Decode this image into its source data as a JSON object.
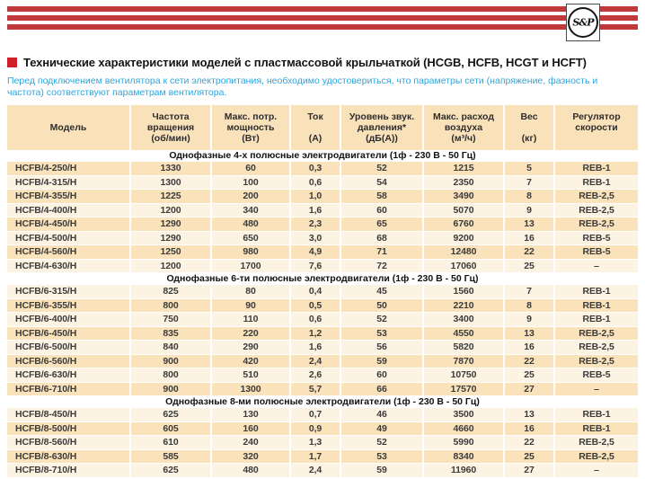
{
  "logo": {
    "text": "S&P"
  },
  "header": {
    "title": "Технические характеристики моделей с пластмассовой крыльчаткой (HCGB, HCFB, HCGT и HCFT)",
    "note": "Перед подключением вентилятора к сети электропитания, необходимо удостовериться, что параметры сети (напряжение, фазность и частота) соответствуют параметрам вентилятора."
  },
  "colors": {
    "stripe_red": "#c2393c",
    "bullet_red": "#ce2127",
    "note_blue": "#2fa5db",
    "header_peach": "#f9e1ba",
    "row_peach": "#fae2ba",
    "row_light": "#fdf3e2"
  },
  "table": {
    "columns": [
      {
        "name": "model",
        "lines": [
          "Модель"
        ]
      },
      {
        "name": "rpm",
        "lines": [
          "Частота",
          "вращения",
          "(об/мин)"
        ]
      },
      {
        "name": "max-power",
        "lines": [
          "Макс. потр.",
          "мощность",
          "(Вт)"
        ]
      },
      {
        "name": "current",
        "lines": [
          "Ток",
          "",
          "(А)"
        ]
      },
      {
        "name": "sound-level",
        "lines": [
          "Уровень звук.",
          "давления*",
          "(дБ(А))"
        ]
      },
      {
        "name": "max-airflow",
        "lines": [
          "Макс. расход",
          "воздуха",
          "(м³/ч)"
        ]
      },
      {
        "name": "weight",
        "lines": [
          "Вес",
          "",
          "(кг)"
        ]
      },
      {
        "name": "speed-controller",
        "lines": [
          "Регулятор",
          "скорости",
          ""
        ]
      }
    ],
    "sections": [
      {
        "title": "Однофазные 4-х полюсные электродвигатели (1ф - 230 В - 50 Гц)",
        "start_shade": "peach",
        "rows": [
          [
            "HCFB/4-250/H",
            "1330",
            "60",
            "0,3",
            "52",
            "1215",
            "5",
            "REB-1"
          ],
          [
            "HCFB/4-315/H",
            "1300",
            "100",
            "0,6",
            "54",
            "2350",
            "7",
            "REB-1"
          ],
          [
            "HCFB/4-355/H",
            "1225",
            "200",
            "1,0",
            "58",
            "3490",
            "8",
            "REB-2,5"
          ],
          [
            "HCFB/4-400/H",
            "1200",
            "340",
            "1,6",
            "60",
            "5070",
            "9",
            "REB-2,5"
          ],
          [
            "HCFB/4-450/H",
            "1290",
            "480",
            "2,3",
            "65",
            "6760",
            "13",
            "REB-2,5"
          ],
          [
            "HCFB/4-500/H",
            "1290",
            "650",
            "3,0",
            "68",
            "9200",
            "16",
            "REB-5"
          ],
          [
            "HCFB/4-560/H",
            "1250",
            "980",
            "4,9",
            "71",
            "12480",
            "22",
            "REB-5"
          ],
          [
            "HCFB/4-630/H",
            "1200",
            "1700",
            "7,6",
            "72",
            "17060",
            "25",
            "–"
          ]
        ]
      },
      {
        "title": "Однофазные 6-ти полюсные электродвигатели (1ф - 230 В - 50 Гц)",
        "start_shade": "light",
        "rows": [
          [
            "HCFB/6-315/H",
            "825",
            "80",
            "0,4",
            "45",
            "1560",
            "7",
            "REB-1"
          ],
          [
            "HCFB/6-355/H",
            "800",
            "90",
            "0,5",
            "50",
            "2210",
            "8",
            "REB-1"
          ],
          [
            "HCFB/6-400/H",
            "750",
            "110",
            "0,6",
            "52",
            "3400",
            "9",
            "REB-1"
          ],
          [
            "HCFB/6-450/H",
            "835",
            "220",
            "1,2",
            "53",
            "4550",
            "13",
            "REB-2,5"
          ],
          [
            "HCFB/6-500/H",
            "840",
            "290",
            "1,6",
            "56",
            "5820",
            "16",
            "REB-2,5"
          ],
          [
            "HCFB/6-560/H",
            "900",
            "420",
            "2,4",
            "59",
            "7870",
            "22",
            "REB-2,5"
          ],
          [
            "HCFB/6-630/H",
            "800",
            "510",
            "2,6",
            "60",
            "10750",
            "25",
            "REB-5"
          ],
          [
            "HCFB/6-710/H",
            "900",
            "1300",
            "5,7",
            "66",
            "17570",
            "27",
            "–"
          ]
        ]
      },
      {
        "title": "Однофазные 8-ми полюсные электродвигатели (1ф - 230 В - 50 Гц)",
        "start_shade": "light",
        "rows": [
          [
            "HCFB/8-450/H",
            "625",
            "130",
            "0,7",
            "46",
            "3500",
            "13",
            "REB-1"
          ],
          [
            "HCFB/8-500/H",
            "605",
            "160",
            "0,9",
            "49",
            "4660",
            "16",
            "REB-1"
          ],
          [
            "HCFB/8-560/H",
            "610",
            "240",
            "1,3",
            "52",
            "5990",
            "22",
            "REB-2,5"
          ],
          [
            "HCFB/8-630/H",
            "585",
            "320",
            "1,7",
            "53",
            "8340",
            "25",
            "REB-2,5"
          ],
          [
            "HCFB/8-710/H",
            "625",
            "480",
            "2,4",
            "59",
            "11960",
            "27",
            "–"
          ]
        ]
      }
    ]
  }
}
